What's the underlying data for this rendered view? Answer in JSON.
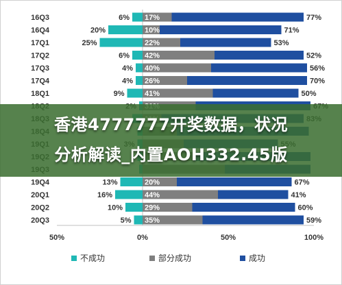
{
  "banner": {
    "line1": "香港4777777开奖数据，状况",
    "line2": "分析解读_内置AOH332.45版"
  },
  "chart_data": {
    "type": "bar",
    "stacked": true,
    "orientation": "horizontal",
    "categories": [
      "16Q3",
      "16Q4",
      "17Q1",
      "17Q2",
      "17Q3",
      "17Q4",
      "18Q1",
      "18Q2",
      "18Q3",
      "18Q4",
      "19Q1",
      "19Q2",
      "19Q3",
      "19Q4",
      "20Q1",
      "20Q2",
      "20Q3"
    ],
    "series": [
      {
        "name": "不成功",
        "color": "#1fb8b5",
        "values": [
          6,
          20,
          25,
          6,
          4,
          4,
          9,
          2,
          6,
          3,
          3,
          3,
          2,
          13,
          16,
          10,
          5
        ],
        "labels": [
          "6%",
          "20%",
          "25%",
          "6%",
          "4%",
          "4%",
          "9%",
          "2%",
          "",
          "",
          "3%",
          "",
          "",
          "13%",
          "16%",
          "10%",
          "5%"
        ]
      },
      {
        "name": "部分成功",
        "color": "#7f7f7f",
        "values": [
          17,
          10,
          22,
          42,
          40,
          26,
          41,
          31,
          11,
          20,
          24,
          30,
          48,
          20,
          44,
          29,
          35
        ],
        "labels": [
          "17%",
          "10%",
          "22%",
          "42%",
          "40%",
          "26%",
          "41%",
          "31%",
          "11%",
          "",
          "",
          "",
          "",
          "20%",
          "44%",
          "29%",
          "35%"
        ]
      },
      {
        "name": "成功",
        "color": "#1f4fa0",
        "values": [
          77,
          71,
          53,
          52,
          56,
          70,
          50,
          67,
          83,
          77,
          55,
          68,
          50,
          67,
          41,
          60,
          59
        ],
        "labels": [
          "77%",
          "71%",
          "53%",
          "52%",
          "56%",
          "70%",
          "50%",
          "67%",
          "83%",
          "",
          "55%",
          "",
          "",
          "67%",
          "41%",
          "60%",
          "59%"
        ]
      }
    ],
    "xlim": [
      -50,
      100
    ],
    "xticks": [
      "50%",
      "0%",
      "50%",
      "100%"
    ],
    "xtick_values": [
      -50,
      0,
      50,
      100
    ],
    "legend_position": "bottom",
    "grid": false
  }
}
